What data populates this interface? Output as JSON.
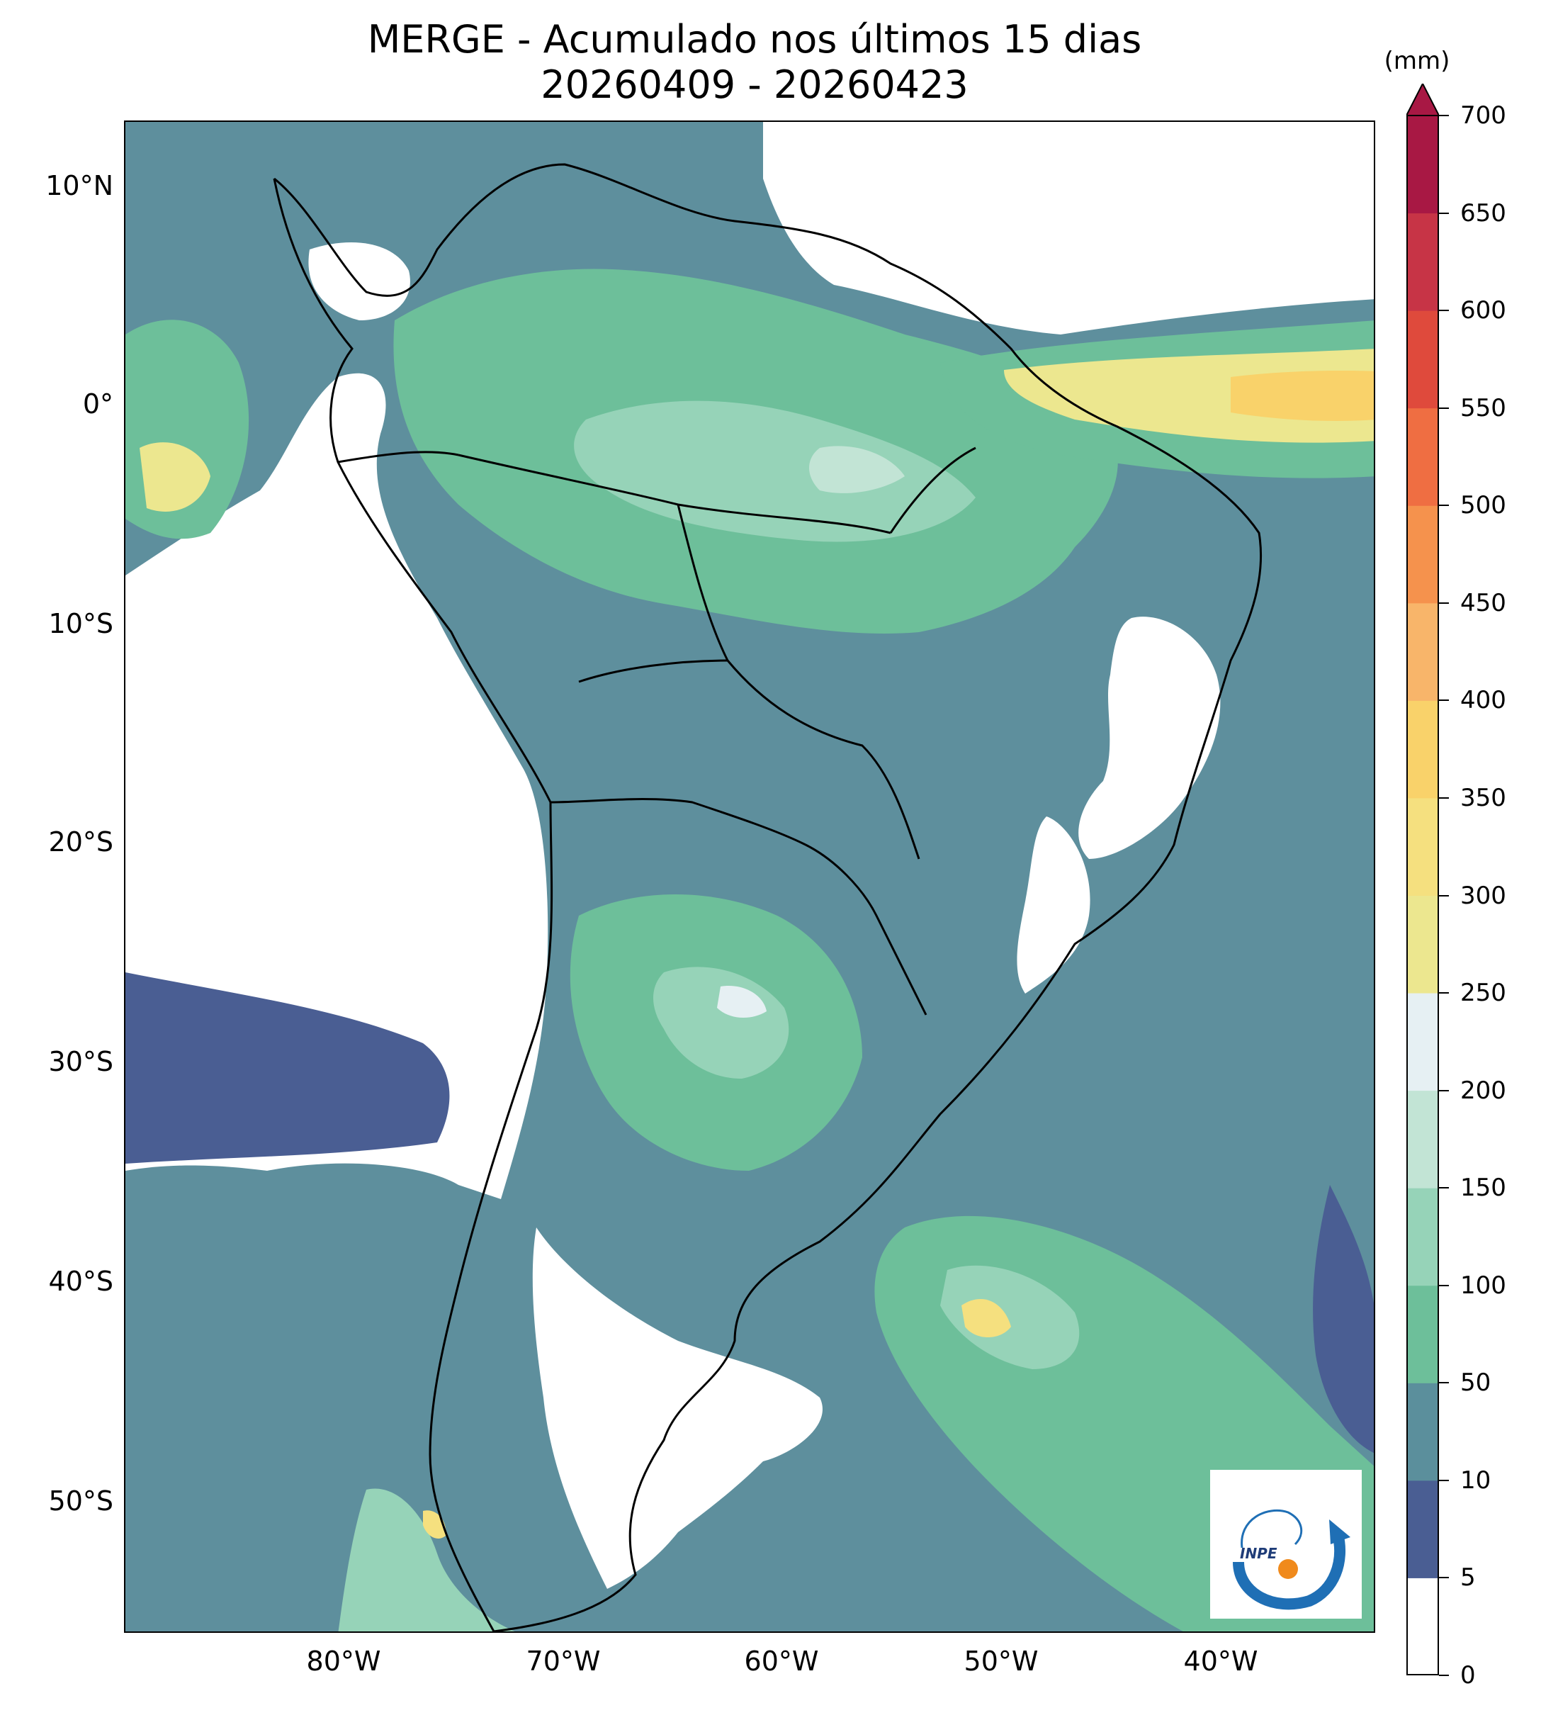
{
  "title": {
    "line1": "MERGE - Acumulado nos últimos 15 dias",
    "line2": "20260409 - 20260423"
  },
  "map": {
    "lat_labels": [
      "10°N",
      "0°",
      "10°S",
      "20°S",
      "30°S",
      "40°S",
      "50°S"
    ],
    "lon_labels": [
      "80°W",
      "70°W",
      "60°W",
      "50°W",
      "40°W"
    ]
  },
  "colorbar": {
    "unit": "(mm)",
    "levels": [
      "0",
      "5",
      "10",
      "50",
      "100",
      "150",
      "200",
      "250",
      "300",
      "350",
      "400",
      "450",
      "500",
      "550",
      "600",
      "650",
      "700"
    ],
    "colors": [
      "#ffffff",
      "#4a5e93",
      "#5b8f9c",
      "#6dbf9a",
      "#96d3b8",
      "#c2e4d5",
      "#e6f0f3",
      "#ece78f",
      "#f5e07f",
      "#f9d26a",
      "#f8b56a",
      "#f5924d",
      "#ef6e42",
      "#df4a3c",
      "#c73446",
      "#a81844",
      "#a81844"
    ]
  },
  "logo": {
    "text": "INPE"
  }
}
